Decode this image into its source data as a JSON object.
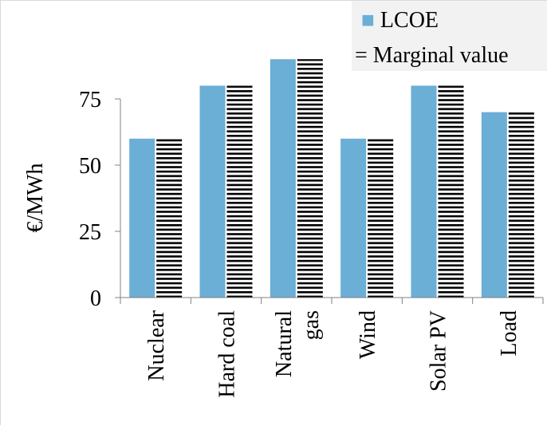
{
  "chart_data": {
    "type": "bar",
    "title": "",
    "xlabel": "",
    "ylabel": "€/MWh",
    "ylim": [
      0,
      100
    ],
    "yticks": [
      0,
      25,
      50,
      75
    ],
    "categories": [
      [
        "Nuclear"
      ],
      [
        "Hard coal"
      ],
      [
        "Natural",
        "gas"
      ],
      [
        "Wind"
      ],
      [
        "Solar PV"
      ],
      [
        "Load"
      ]
    ],
    "series": [
      {
        "name": "LCOE",
        "values": [
          60,
          80,
          90,
          60,
          80,
          70
        ],
        "color": "#6baed6",
        "pattern": "solid"
      },
      {
        "name": "Marginal value",
        "values": [
          60,
          80,
          90,
          60,
          80,
          70
        ],
        "color": "#000000",
        "pattern": "horizontal-stripes"
      }
    ],
    "grid": false,
    "legend_position": "top-right"
  },
  "legend": {
    "square_glyph": "■",
    "stripe_glyph": "="
  }
}
